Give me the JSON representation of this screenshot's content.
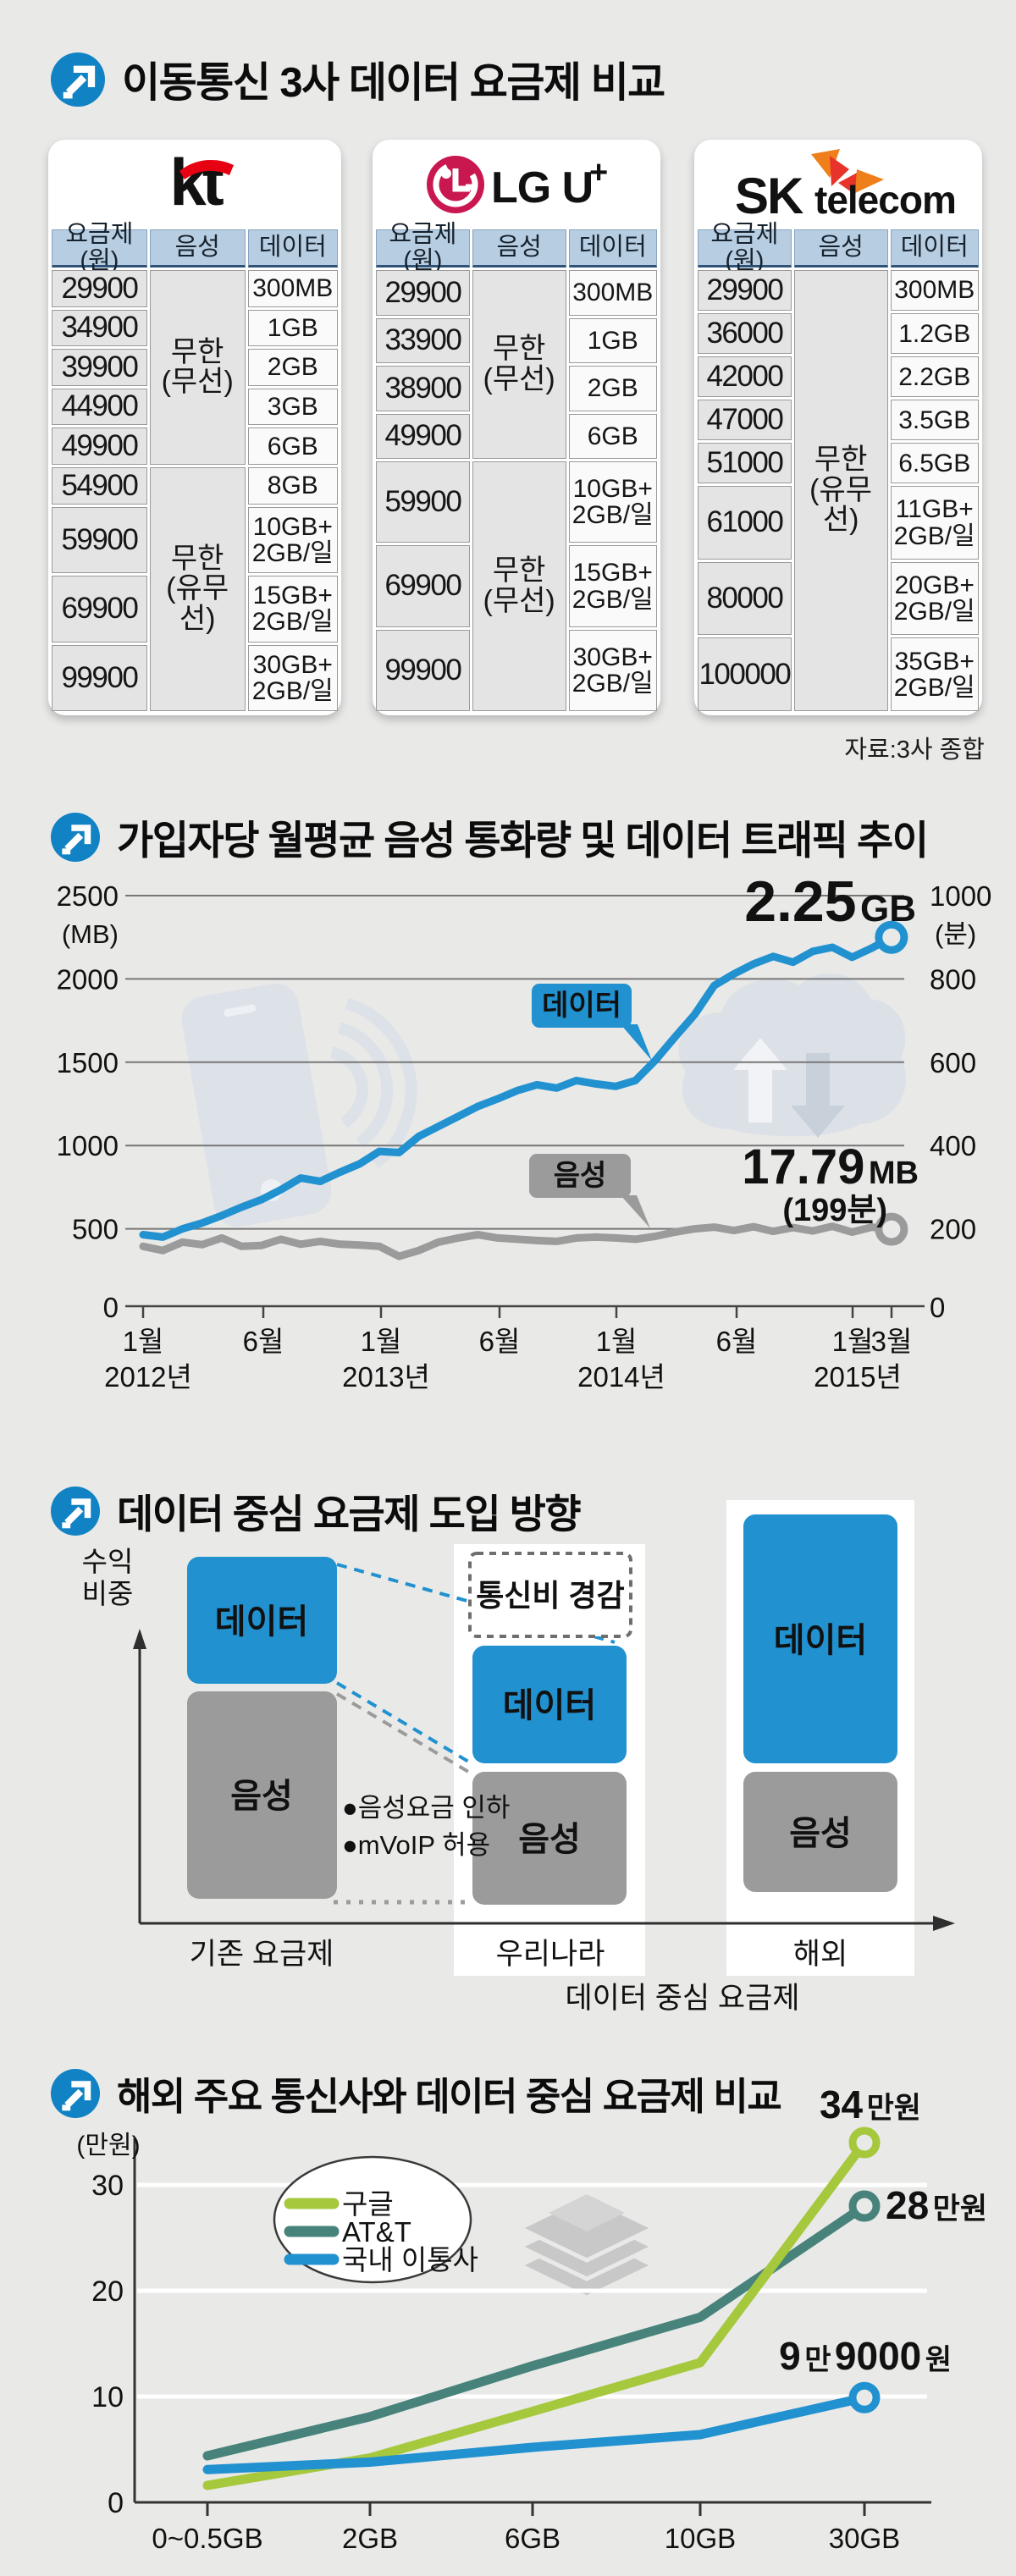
{
  "colors": {
    "background": "#e9e9e8",
    "badge_blue": "#1182c4",
    "accent_blue": "#2191d0",
    "gray": "#9b9b9b",
    "header_blue": "#b7cde1",
    "google_green": "#a6c83c",
    "att_teal": "#47837b",
    "kt_red": "#e60012",
    "lg_magenta": "#c9174f",
    "sk_red": "#e8332a",
    "sk_orange": "#ef7f1a"
  },
  "section1": {
    "title": "이동통신 3사 데이터 요금제 비교",
    "source": "자료:3사 종합",
    "columns": [
      "요금제(원)",
      "음성",
      "데이터"
    ],
    "carriers": [
      {
        "name": "kt",
        "voice_groups": [
          {
            "label": "무한(무선)",
            "span": 5
          },
          {
            "label": "무한(유무선)",
            "span": 4
          }
        ],
        "rows": [
          [
            "29900",
            "300MB"
          ],
          [
            "34900",
            "1GB"
          ],
          [
            "39900",
            "2GB"
          ],
          [
            "44900",
            "3GB"
          ],
          [
            "49900",
            "6GB"
          ],
          [
            "54900",
            "8GB"
          ],
          [
            "59900",
            "10GB+2GB/일"
          ],
          [
            "69900",
            "15GB+2GB/일"
          ],
          [
            "99900",
            "30GB+2GB/일"
          ]
        ]
      },
      {
        "name": "LG U+",
        "voice_groups": [
          {
            "label": "무한(무선)",
            "span": 4
          },
          {
            "label": "무한(무선)",
            "span": 3
          }
        ],
        "rows": [
          [
            "29900",
            "300MB"
          ],
          [
            "33900",
            "1GB"
          ],
          [
            "38900",
            "2GB"
          ],
          [
            "49900",
            "6GB"
          ],
          [
            "59900",
            "10GB+2GB/일"
          ],
          [
            "69900",
            "15GB+2GB/일"
          ],
          [
            "99900",
            "30GB+2GB/일"
          ]
        ]
      },
      {
        "name": "SK telecom",
        "voice_groups": [
          {
            "label": "무한(유무선)",
            "span": 8
          }
        ],
        "rows": [
          [
            "29900",
            "300MB"
          ],
          [
            "36000",
            "1.2GB"
          ],
          [
            "42000",
            "2.2GB"
          ],
          [
            "47000",
            "3.5GB"
          ],
          [
            "51000",
            "6.5GB"
          ],
          [
            "61000",
            "11GB+2GB/일"
          ],
          [
            "80000",
            "20GB+2GB/일"
          ],
          [
            "100000",
            "35GB+2GB/일"
          ]
        ]
      }
    ]
  },
  "section3": {
    "title": "데이터 중심 요금제 도입 방향",
    "y_axis_label": [
      "수익",
      "비중"
    ],
    "groups": [
      {
        "label": "기존 요금제",
        "data_label": "데이터",
        "voice_label": "음성"
      },
      {
        "label": "우리나라",
        "data_label": "데이터",
        "voice_label": "음성"
      },
      {
        "label": "해외",
        "data_label": "데이터",
        "voice_label": "음성"
      }
    ],
    "reduction_note": "통신비 경감",
    "bullets": [
      "●음성요금 인하",
      "●mVoIP 허용"
    ],
    "bottom_label": "데이터 중심 요금제"
  },
  "chart_data": [
    {
      "id": "traffic-trend",
      "type": "line",
      "title": "가입자당 월평균 음성 통화량 및 데이터 트래픽 추이",
      "left_axis": {
        "label": "(MB)",
        "ticks": [
          0,
          500,
          1000,
          1500,
          2000,
          2500
        ],
        "range": [
          0,
          2500
        ]
      },
      "right_axis": {
        "label": "(분)",
        "ticks": [
          0,
          200,
          400,
          600,
          800,
          1000
        ],
        "range": [
          0,
          1000
        ]
      },
      "x_ticks": [
        {
          "month": "1월",
          "year": "2012년"
        },
        {
          "month": "6월"
        },
        {
          "month": "1월",
          "year": "2013년"
        },
        {
          "month": "6월"
        },
        {
          "month": "1월",
          "year": "2014년"
        },
        {
          "month": "6월"
        },
        {
          "month": "1월",
          "year": "2015년"
        },
        {
          "month": "3월"
        }
      ],
      "x_start": "2012-01",
      "x_end": "2015-03",
      "series": [
        {
          "name": "데이터",
          "axis": "left",
          "unit": "MB",
          "color": "#2191d0",
          "values": [
            465,
            450,
            500,
            535,
            580,
            630,
            675,
            735,
            805,
            785,
            840,
            890,
            965,
            958,
            1055,
            1115,
            1175,
            1235,
            1280,
            1330,
            1365,
            1345,
            1390,
            1370,
            1355,
            1390,
            1510,
            1650,
            1785,
            1960,
            2030,
            2090,
            2135,
            2100,
            2165,
            2190,
            2130,
            2185,
            2250
          ]
        },
        {
          "name": "음성",
          "axis": "right",
          "unit": "분",
          "color": "#9b9b9b",
          "values": [
            158,
            148,
            168,
            162,
            178,
            158,
            160,
            175,
            163,
            170,
            163,
            161,
            158,
            134,
            148,
            168,
            178,
            186,
            178,
            175,
            172,
            170,
            178,
            180,
            178,
            175,
            182,
            192,
            200,
            204,
            196,
            205,
            194,
            203,
            195,
            206,
            192,
            204,
            199
          ]
        }
      ],
      "annotations": {
        "data_end_value": "2.25",
        "data_end_unit": "GB",
        "voice_end_value": "17.79",
        "voice_end_unit": "MB",
        "voice_end_minutes": "(199분)"
      }
    },
    {
      "id": "overseas-comparison",
      "type": "line",
      "title": "해외 주요 통신사와 데이터 중심 요금제 비교",
      "y_axis": {
        "label": "(만원)",
        "ticks": [
          0,
          10,
          20,
          30
        ],
        "range": [
          0,
          35
        ]
      },
      "categories": [
        "0~0.5GB",
        "2GB",
        "6GB",
        "10GB",
        "30GB"
      ],
      "series": [
        {
          "name": "구글",
          "color": "#a6c83c",
          "values": [
            1.6,
            4.2,
            8.6,
            13.2,
            34
          ]
        },
        {
          "name": "AT&T",
          "color": "#47837b",
          "values": [
            4.4,
            8.1,
            12.9,
            17.5,
            28
          ]
        },
        {
          "name": "국내 이통사",
          "color": "#2191d0",
          "values": [
            3.1,
            3.8,
            5.2,
            6.4,
            9.9
          ]
        }
      ],
      "end_labels": {
        "google": [
          "34",
          "만원"
        ],
        "att": [
          "28",
          "만원"
        ],
        "domestic": [
          "9",
          "만",
          "9000",
          "원"
        ]
      }
    }
  ]
}
